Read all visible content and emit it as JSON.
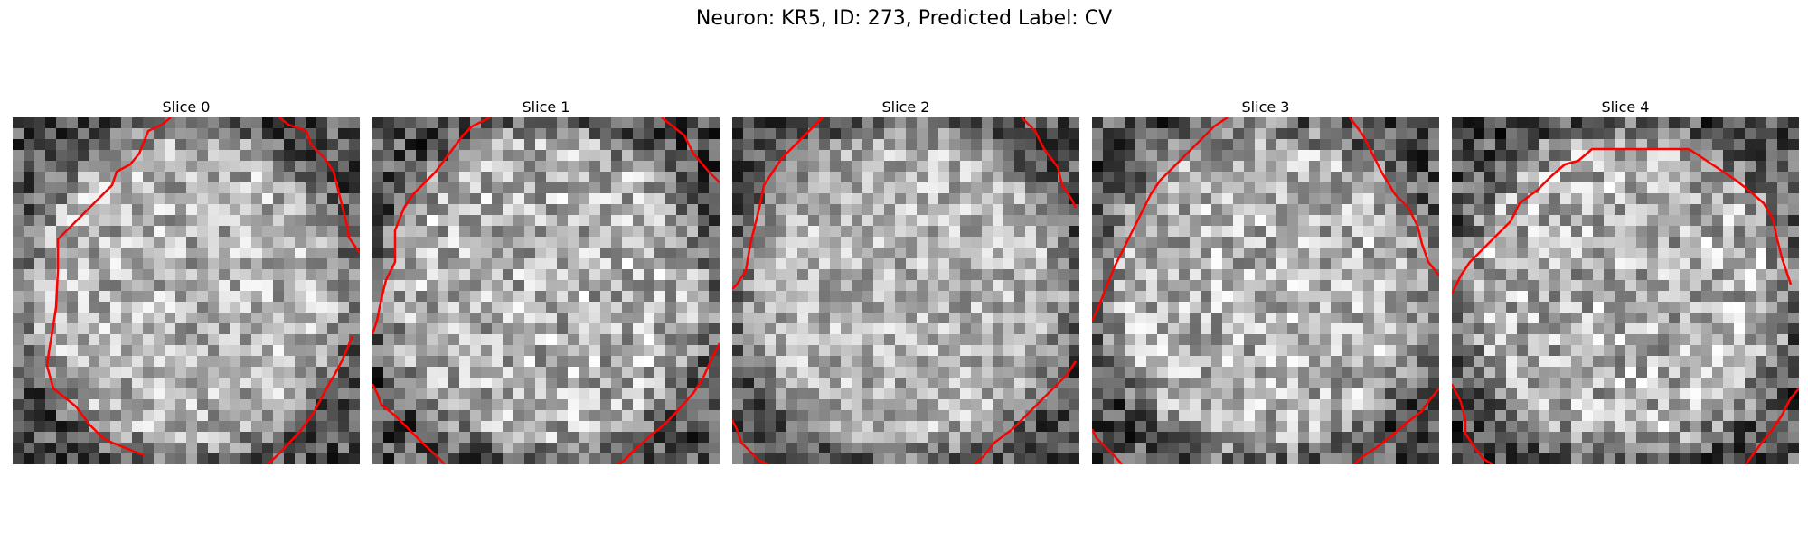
{
  "figure": {
    "title": "Neuron: KR5, ID: 273, Predicted Label: CV",
    "contour_color": "#ff0000"
  },
  "panels": [
    {
      "title": "Slice 0",
      "seed": 11,
      "contrast": 0.55
    },
    {
      "title": "Slice 1",
      "seed": 23,
      "contrast": 0.6
    },
    {
      "title": "Slice 2",
      "seed": 37,
      "contrast": 0.5
    },
    {
      "title": "Slice 3",
      "seed": 41,
      "contrast": 0.58
    },
    {
      "title": "Slice 4",
      "seed": 53,
      "contrast": 0.62
    }
  ]
}
